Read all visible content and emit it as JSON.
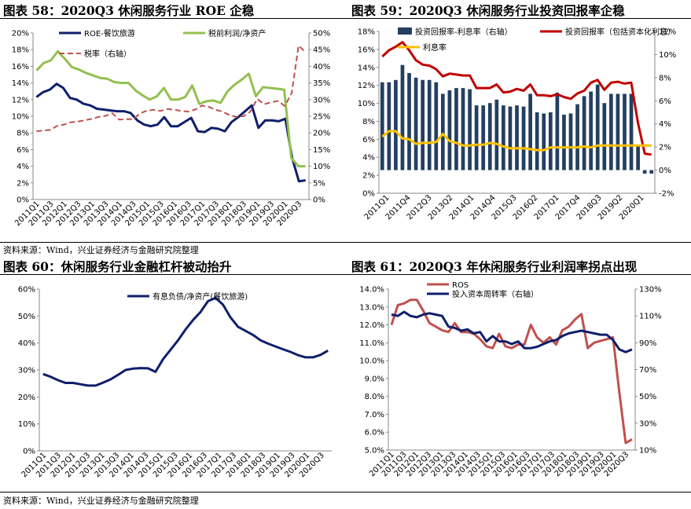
{
  "colors": {
    "navy": "#0f1f6b",
    "green": "#92c050",
    "red": "#c0504d",
    "darkred": "#c00000",
    "gold": "#ffc000",
    "bar": "#243f60"
  },
  "titles": {
    "c58": "图表 58：2020Q3 休闲服务行业 ROE 企稳",
    "c59": "图表 59：2020Q3 休闲服务行业投资回报率企稳",
    "c60": "图表 60：休闲服务行业金融杠杆被动抬升",
    "c61": "图表 61：2020Q3 年休闲服务行业利润率拐点出现"
  },
  "sources": {
    "top": "资料来源：Wind，兴业证券经济与金融研究院整理",
    "bottom": "资料来源：Wind，兴业证券经济与金融研究院整理"
  },
  "chart_data": [
    {
      "id": "c58",
      "type": "line",
      "y_left": {
        "min": 0,
        "max": 20,
        "step": 2,
        "suffix": "%"
      },
      "y_right": {
        "min": 0,
        "max": 50,
        "step": 5,
        "suffix": "%"
      },
      "x_labels": [
        "2011Q1",
        "2011Q3",
        "2012Q1",
        "2012Q3",
        "2013Q1",
        "2013Q3",
        "2014Q1",
        "2014Q3",
        "2015Q1",
        "2015Q3",
        "2016Q1",
        "2016Q3",
        "2017Q1",
        "2017Q3",
        "2018Q1",
        "2018Q3",
        "2019Q1",
        "2019Q3",
        "2020Q1",
        "2020Q3"
      ],
      "series": [
        {
          "name": "ROE-餐饮旅游",
          "axis": "left",
          "color": "#0f1f6b",
          "style": "solid",
          "values": [
            12.3,
            12.9,
            13.2,
            13.9,
            13.4,
            12.2,
            12.0,
            11.5,
            11.3,
            10.9,
            10.8,
            10.7,
            10.6,
            10.6,
            10.4,
            9.5,
            9.0,
            8.8,
            9.0,
            9.9,
            8.8,
            8.8,
            9.3,
            9.8,
            8.2,
            8.1,
            8.6,
            8.5,
            8.2,
            9.3,
            9.9,
            10.6,
            11.3,
            8.6,
            9.5,
            9.5,
            9.4,
            9.7,
            5.0,
            2.2,
            2.3
          ]
        },
        {
          "name": "税前利润/净资产",
          "axis": "left",
          "color": "#92c050",
          "style": "solid",
          "values": [
            15.5,
            16.4,
            16.7,
            17.8,
            16.9,
            15.9,
            15.6,
            15.2,
            14.9,
            14.6,
            14.5,
            14.1,
            14.0,
            14.0,
            13.1,
            12.5,
            12.0,
            12.4,
            13.4,
            12.0,
            12.0,
            12.3,
            13.7,
            11.5,
            11.8,
            11.9,
            11.6,
            13.0,
            13.8,
            14.4,
            15.1,
            12.4,
            13.5,
            13.4,
            13.3,
            13.2,
            5.0,
            4.0,
            4.0
          ]
        },
        {
          "name": "税率（右轴）",
          "axis": "right",
          "color": "#c0504d",
          "style": "dashed",
          "values": [
            20.5,
            20.7,
            20.9,
            22.1,
            22.5,
            23.2,
            23.4,
            23.8,
            24.2,
            24.8,
            25.1,
            25.9,
            24.0,
            24.1,
            24.1,
            25.8,
            26.7,
            26.9,
            26.6,
            27.2,
            26.9,
            26.6,
            26.4,
            27.0,
            28.2,
            27.8,
            26.9,
            26.4,
            25.3,
            24.8,
            25.0,
            26.4,
            30.2,
            28.6,
            29.2,
            29.6,
            28.1,
            32.0,
            46.2,
            44.3
          ]
        }
      ]
    },
    {
      "id": "c59",
      "type": "bar+line",
      "y_left": {
        "min": 0,
        "max": 18,
        "step": 2,
        "suffix": "%"
      },
      "y_right": {
        "min": -2,
        "max": 12,
        "step": 2,
        "suffix": "%"
      },
      "x_labels": [
        "2011Q1",
        "2011Q4",
        "2012Q3",
        "2013Q2",
        "2014Q1",
        "2014Q4",
        "2015Q3",
        "2016Q2",
        "2017Q1",
        "2017Q4",
        "2018Q3",
        "2019Q2",
        "2020Q1"
      ],
      "series": [
        {
          "name": "投资回报率-利息率（右轴）",
          "axis": "right",
          "color": "#243f60",
          "type": "bar",
          "values": [
            7.6,
            7.6,
            7.8,
            9.1,
            8.4,
            8.0,
            7.8,
            7.8,
            7.6,
            6.6,
            6.9,
            7.1,
            7.1,
            7.0,
            5.6,
            5.6,
            5.8,
            6.1,
            5.6,
            5.5,
            5.6,
            5.5,
            6.6,
            5.0,
            4.9,
            5.0,
            6.7,
            4.8,
            4.9,
            5.7,
            6.4,
            6.8,
            7.4,
            5.8,
            6.6,
            6.6,
            6.6,
            6.6,
            2.2,
            -0.3,
            -0.3
          ]
        },
        {
          "name": "投资回报率（包括资本化利息）",
          "axis": "left",
          "color": "#c00000",
          "type": "line",
          "values": [
            15.2,
            15.9,
            16.3,
            16.8,
            15.9,
            14.8,
            14.3,
            14.2,
            13.8,
            13.0,
            13.3,
            13.2,
            13.1,
            13.1,
            11.7,
            11.7,
            11.7,
            12.1,
            11.2,
            11.3,
            11.6,
            11.4,
            12.1,
            10.9,
            10.9,
            10.8,
            11.0,
            10.7,
            10.5,
            11.1,
            11.4,
            12.3,
            12.6,
            11.5,
            12.3,
            12.4,
            12.2,
            12.3,
            7.8,
            4.4,
            4.3
          ]
        },
        {
          "name": "利息率",
          "axis": "left",
          "color": "#ffc000",
          "type": "line",
          "values": [
            6.3,
            6.9,
            6.9,
            6.1,
            6.0,
            5.5,
            5.6,
            5.6,
            5.7,
            6.6,
            5.8,
            5.6,
            5.3,
            5.3,
            5.4,
            5.4,
            5.6,
            5.5,
            5.2,
            5.0,
            5.0,
            5.0,
            4.9,
            4.8,
            4.8,
            5.1,
            5.1,
            5.1,
            5.1,
            5.1,
            5.2,
            5.1,
            5.3,
            5.3,
            5.3,
            5.3,
            5.3,
            5.3,
            5.3,
            5.3,
            5.3
          ]
        }
      ]
    },
    {
      "id": "c60",
      "type": "line",
      "y_left": {
        "min": 0,
        "max": 60,
        "step": 10,
        "suffix": "%"
      },
      "x_labels": [
        "2011Q1",
        "2011Q3",
        "2012Q1",
        "2012Q3",
        "2013Q1",
        "2013Q3",
        "2014Q1",
        "2014Q3",
        "2015Q1",
        "2015Q3",
        "2016Q1",
        "2016Q3",
        "2017Q1",
        "2017Q3",
        "2018Q1",
        "2018Q3",
        "2019Q1",
        "2019Q3",
        "2020Q1",
        "2020Q3"
      ],
      "series": [
        {
          "name": "有息负债/净资产(餐饮旅游)",
          "axis": "left",
          "color": "#0f1f6b",
          "style": "solid",
          "values": [
            28.5,
            27.5,
            26.2,
            25.2,
            25.2,
            24.7,
            24.2,
            24.2,
            25.3,
            26.5,
            28.2,
            30.0,
            30.5,
            30.7,
            30.6,
            29.3,
            34.0,
            37.5,
            41.0,
            45.0,
            48.5,
            51.5,
            55.5,
            56.7,
            54.2,
            49.5,
            46.0,
            44.5,
            43.0,
            41.0,
            39.8,
            38.7,
            37.7,
            36.7,
            35.5,
            34.7,
            34.7,
            35.6,
            37.2
          ]
        }
      ]
    },
    {
      "id": "c61",
      "type": "line",
      "y_left": {
        "min": 5,
        "max": 14,
        "step": 1,
        "decimals": 1,
        "suffix": "%"
      },
      "y_right": {
        "min": 10,
        "max": 130,
        "step": 20,
        "suffix": "%"
      },
      "x_labels": [
        "2011Q1",
        "2011Q3",
        "2012Q1",
        "2012Q3",
        "2013Q1",
        "2013Q3",
        "2014Q1",
        "2014Q3",
        "2015Q1",
        "2015Q3",
        "2016Q1",
        "2016Q3",
        "2017Q1",
        "2017Q3",
        "2018Q1",
        "2018Q3",
        "2019Q1",
        "2019Q3",
        "2020Q1",
        "2020Q3"
      ],
      "series": [
        {
          "name": "ROS",
          "axis": "left",
          "color": "#c0504d",
          "style": "solid",
          "values": [
            12.0,
            13.1,
            13.2,
            13.4,
            13.4,
            12.8,
            12.1,
            11.9,
            11.7,
            11.6,
            12.1,
            11.6,
            11.6,
            11.5,
            11.2,
            10.8,
            10.7,
            11.5,
            10.8,
            10.7,
            10.9,
            10.9,
            12.0,
            11.3,
            11.0,
            11.3,
            10.9,
            11.7,
            11.9,
            12.3,
            12.6,
            10.7,
            11.0,
            11.1,
            11.2,
            11.3,
            8.2,
            5.4,
            5.6
          ]
        },
        {
          "name": "投入资本周转率（右轴）",
          "axis": "right",
          "color": "#0f1f6b",
          "style": "solid",
          "values": [
            111,
            110,
            113,
            110,
            109,
            111,
            112,
            111,
            110,
            102,
            101,
            99,
            100,
            97,
            98,
            91,
            95,
            91,
            91,
            89,
            91,
            86,
            86,
            87,
            89,
            91,
            92,
            95,
            97,
            98,
            99,
            98,
            97,
            96,
            96,
            92,
            85,
            83,
            85
          ]
        }
      ]
    }
  ]
}
